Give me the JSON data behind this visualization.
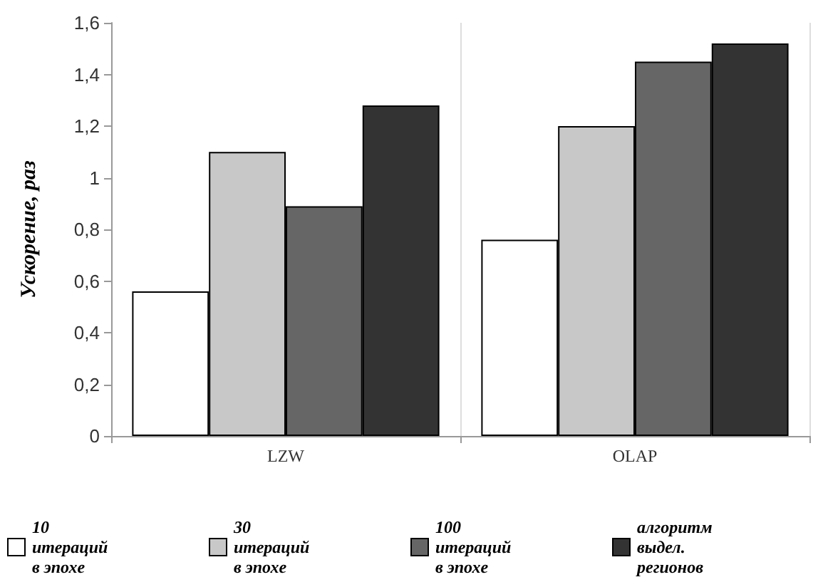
{
  "chart_data": {
    "type": "bar",
    "ylabel": "Ускорение, раз",
    "categories": [
      "LZW",
      "OLAP"
    ],
    "series": [
      {
        "name": "10 итераций в эпохе",
        "color": "#ffffff",
        "values": [
          0.56,
          0.76
        ]
      },
      {
        "name": "30 итераций в эпохе",
        "color": "#c8c8c8",
        "values": [
          1.1,
          1.2
        ]
      },
      {
        "name": "100 итераций в эпохе",
        "color": "#666666",
        "values": [
          0.89,
          1.45
        ]
      },
      {
        "name": "алгоритм выдел. регионов",
        "color": "#333333",
        "values": [
          1.28,
          1.52
        ]
      }
    ],
    "ylim": [
      0,
      1.6
    ],
    "yticks": [
      0,
      {
        "value": 0.2,
        "label": "0,2"
      },
      {
        "value": 0.4,
        "label": "0,4"
      },
      {
        "value": 0.6,
        "label": "0,6"
      },
      {
        "value": 0.8,
        "label": "0,8"
      },
      1,
      {
        "value": 1.2,
        "label": "1,2"
      },
      {
        "value": 1.4,
        "label": "1,4"
      },
      {
        "value": 1.6,
        "label": "1,6"
      }
    ],
    "grid": "x",
    "legend": "bottom"
  }
}
